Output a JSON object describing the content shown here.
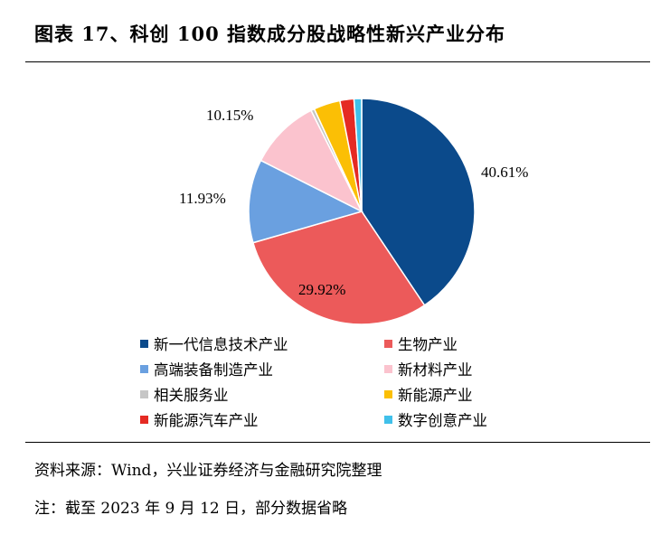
{
  "header": {
    "title": "图表 17、科创 100 指数成分股战略性新兴产业分布"
  },
  "chart_data": {
    "type": "pie",
    "slices": [
      {
        "label": "新一代信息技术产业",
        "value": 40.61,
        "value_label": "40.61%",
        "color": "#0b4a8b"
      },
      {
        "label": "生物产业",
        "value": 29.92,
        "value_label": "29.92%",
        "color": "#ec5a5a"
      },
      {
        "label": "高端装备制造产业",
        "value": 11.93,
        "value_label": "11.93%",
        "color": "#6aa0e0"
      },
      {
        "label": "新材料产业",
        "value": 10.15,
        "value_label": "10.15%",
        "color": "#fbc3ce"
      },
      {
        "label": "相关服务业",
        "value": 0.5,
        "value_label": "",
        "color": "#c6c6c6"
      },
      {
        "label": "新能源产业",
        "value": 3.8,
        "value_label": "",
        "color": "#fbbf05"
      },
      {
        "label": "新能源汽车产业",
        "value": 2.0,
        "value_label": "",
        "color": "#e52a23"
      },
      {
        "label": "数字创意产业",
        "value": 1.09,
        "value_label": "",
        "color": "#40c0ea"
      }
    ],
    "legend_position": "bottom"
  },
  "footer": {
    "source": "资料来源：Wind，兴业证券经济与金融研究院整理",
    "note": "注：截至 2023 年 9 月 12 日，部分数据省略"
  }
}
